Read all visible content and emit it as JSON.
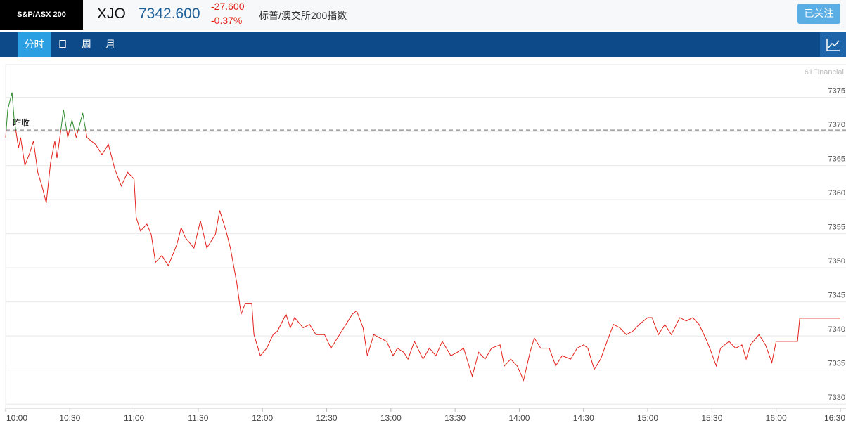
{
  "header": {
    "index_name": "S&P/ASX 200",
    "symbol": "XJO",
    "price": "7342.600",
    "change": "-27.600",
    "change_pct": "-0.37%",
    "name": "标普/澳交所200指数",
    "follow_button": "已关注"
  },
  "tabs": [
    "分时",
    "日",
    "周",
    "月"
  ],
  "chart_data": {
    "type": "line",
    "watermark": "61Financial",
    "prev_close": 7370.2,
    "prev_close_label": "昨收",
    "up_color": "#2b8a2b",
    "down_color": "#e3211b",
    "grid": true,
    "xlim": [
      "10:00",
      "16:30"
    ],
    "xticks": [
      "10:00",
      "10:30",
      "11:00",
      "11:30",
      "12:00",
      "12:30",
      "13:00",
      "13:30",
      "14:00",
      "14:30",
      "15:00",
      "15:30",
      "16:00",
      "16:30"
    ],
    "ylim": [
      7329.4,
      7379.8
    ],
    "yticks": [
      7330,
      7335,
      7340,
      7345,
      7350,
      7355,
      7360,
      7365,
      7370,
      7375
    ],
    "x": [
      "10:00",
      "10:01",
      "10:03",
      "10:04",
      "10:06",
      "10:07",
      "10:09",
      "10:11",
      "10:13",
      "10:15",
      "10:17",
      "10:19",
      "10:21",
      "10:23",
      "10:24",
      "10:26",
      "10:27",
      "10:29",
      "10:31",
      "10:33",
      "10:36",
      "10:38",
      "10:42",
      "10:45",
      "10:48",
      "10:51",
      "10:54",
      "10:57",
      "11:00",
      "11:01",
      "11:03",
      "11:06",
      "11:08",
      "11:10",
      "11:13",
      "11:16",
      "11:20",
      "11:22",
      "11:24",
      "11:28",
      "11:31",
      "11:34",
      "11:38",
      "11:40",
      "11:43",
      "11:45",
      "11:48",
      "11:50",
      "11:52",
      "11:55",
      "11:56",
      "11:59",
      "12:02",
      "12:05",
      "12:07",
      "12:11",
      "12:13",
      "12:15",
      "12:19",
      "12:22",
      "12:25",
      "12:29",
      "12:32",
      "12:35",
      "12:38",
      "12:42",
      "12:44",
      "12:47",
      "12:49",
      "12:52",
      "12:55",
      "12:58",
      "13:01",
      "13:03",
      "13:06",
      "13:08",
      "13:11",
      "13:15",
      "13:18",
      "13:21",
      "13:24",
      "13:28",
      "13:31",
      "13:34",
      "13:38",
      "13:41",
      "13:44",
      "13:47",
      "13:51",
      "13:53",
      "13:56",
      "13:59",
      "14:02",
      "14:05",
      "14:07",
      "14:10",
      "14:14",
      "14:17",
      "14:20",
      "14:24",
      "14:27",
      "14:30",
      "14:32",
      "14:35",
      "14:38",
      "14:41",
      "14:44",
      "14:47",
      "14:50",
      "14:53",
      "14:56",
      "15:00",
      "15:02",
      "15:05",
      "15:08",
      "15:11",
      "15:15",
      "15:18",
      "15:21",
      "15:24",
      "15:27",
      "15:29",
      "15:32",
      "15:34",
      "15:38",
      "15:41",
      "15:44",
      "15:46",
      "15:48",
      "15:52",
      "15:55",
      "15:58",
      "16:00",
      "16:02",
      "16:10",
      "16:11",
      "16:30"
    ],
    "values": [
      7369.1,
      7373.2,
      7375.7,
      7371.7,
      7367.6,
      7369.1,
      7365.0,
      7366.6,
      7368.6,
      7364.0,
      7362.0,
      7359.5,
      7365.4,
      7368.6,
      7366.1,
      7370.6,
      7373.2,
      7369.1,
      7371.7,
      7369.1,
      7372.7,
      7369.1,
      7368.1,
      7366.6,
      7368.1,
      7364.5,
      7362.0,
      7364.0,
      7363.0,
      7357.4,
      7355.4,
      7356.4,
      7354.9,
      7350.8,
      7351.8,
      7350.3,
      7353.4,
      7355.9,
      7354.4,
      7352.9,
      7356.9,
      7352.9,
      7354.9,
      7358.4,
      7355.4,
      7352.9,
      7347.8,
      7343.2,
      7344.8,
      7344.8,
      7340.2,
      7337.1,
      7338.2,
      7340.2,
      7340.7,
      7343.2,
      7341.2,
      7342.7,
      7341.2,
      7341.7,
      7340.2,
      7340.2,
      7338.2,
      7339.7,
      7341.2,
      7343.2,
      7343.7,
      7341.2,
      7337.1,
      7340.2,
      7339.7,
      7339.2,
      7337.1,
      7338.2,
      7337.6,
      7336.6,
      7339.2,
      7336.6,
      7338.2,
      7337.1,
      7339.2,
      7337.1,
      7337.6,
      7338.2,
      7334.1,
      7337.6,
      7336.6,
      7338.2,
      7338.7,
      7335.6,
      7336.6,
      7335.6,
      7333.5,
      7337.6,
      7339.7,
      7338.2,
      7338.2,
      7335.6,
      7337.1,
      7336.6,
      7338.2,
      7338.7,
      7338.2,
      7335.1,
      7336.6,
      7339.2,
      7341.7,
      7341.2,
      7340.2,
      7340.7,
      7341.7,
      7342.7,
      7342.7,
      7340.2,
      7341.7,
      7340.2,
      7342.7,
      7342.2,
      7342.7,
      7341.7,
      7339.7,
      7338.2,
      7335.6,
      7338.2,
      7339.2,
      7338.2,
      7338.7,
      7336.6,
      7338.7,
      7340.2,
      7338.7,
      7336.1,
      7339.2,
      7339.2,
      7339.2,
      7342.6,
      7342.6
    ]
  }
}
